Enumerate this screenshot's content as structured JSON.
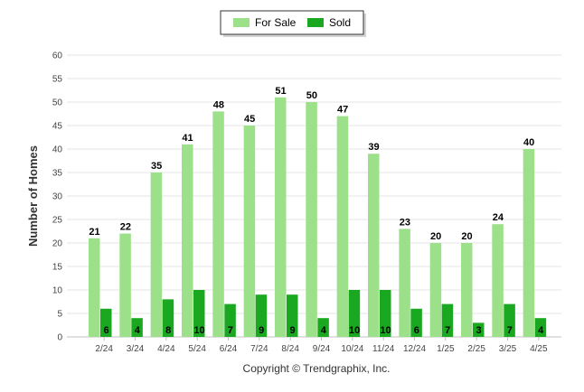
{
  "chart_data": {
    "type": "bar",
    "title": "",
    "xlabel": "",
    "ylabel": "Number of Homes",
    "ylim": [
      0,
      60
    ],
    "ytick_step": 5,
    "yticks": [
      "0",
      "5",
      "10",
      "15",
      "20",
      "25",
      "30",
      "35",
      "40",
      "45",
      "50",
      "55",
      "60"
    ],
    "categories": [
      "2/24",
      "3/24",
      "4/24",
      "5/24",
      "6/24",
      "7/24",
      "8/24",
      "9/24",
      "10/24",
      "11/24",
      "12/24",
      "1/25",
      "2/25",
      "3/25",
      "4/25"
    ],
    "series": [
      {
        "name": "For Sale",
        "color": "#9de08a",
        "values": [
          21,
          22,
          35,
          41,
          48,
          45,
          51,
          50,
          47,
          39,
          23,
          20,
          20,
          24,
          40
        ]
      },
      {
        "name": "Sold",
        "color": "#19a81f",
        "values": [
          6,
          4,
          8,
          10,
          7,
          9,
          9,
          4,
          10,
          10,
          6,
          7,
          3,
          7,
          4
        ]
      }
    ],
    "grid": true,
    "legend_position": "top-center",
    "data_labels": true
  },
  "footer": {
    "copyright": "Copyright © Trendgraphix, Inc."
  }
}
